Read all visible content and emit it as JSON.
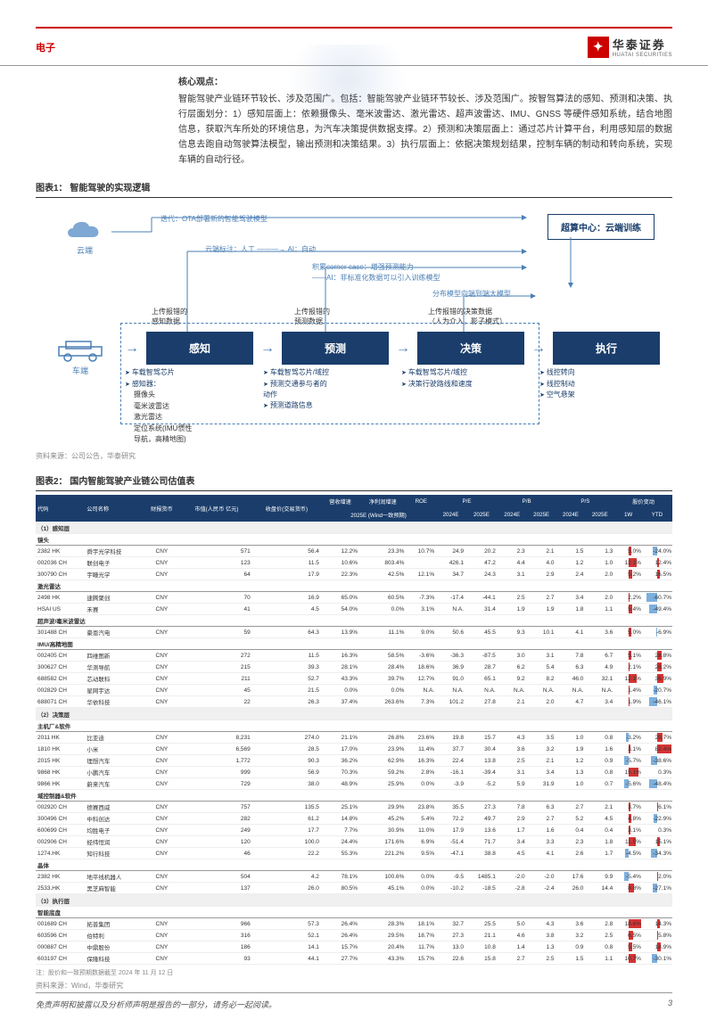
{
  "header": {
    "category": "电子",
    "logo_cn": "华泰证券",
    "logo_en": "HUATAI SECURITIES"
  },
  "core": {
    "title": "核心观点：",
    "body": "智能驾驶产业链环节较长、涉及范围广。包括：智能驾驶产业链环节较长、涉及范围广。按智驾算法的感知、预测和决策、执行层面划分：1）感知层面上：依赖摄像头、毫米波雷达、激光雷达、超声波雷达、IMU、GNSS 等硬件感知系统，结合地图信息，获取汽车所处的环境信息，为汽车决策提供数据支撑。2）预测和决策层面上：通过芯片计算平台，利用感知层的数据信息去跑自动驾驶算法模型，输出预测和决策结果。3）执行层面上：依据决策规划结果，控制车辆的制动和转向系统，实现车辆的自动行径。"
  },
  "chart1": {
    "title": "图表1： 智能驾驶的实现逻辑",
    "cloud": "云端",
    "car": "车端",
    "cloud_center": "超算中心：云端训练",
    "iter": "迭代：OTA部署新的智能驾驶模型",
    "anno_cloud": "云端标注：人工 ———→ AI：自动",
    "anno_corner": "积累corner case：增强预测能力",
    "anno_ai": "——AI：非标准化数据可以引入训练模型",
    "anno_dist": "分布模型向端到端大模型",
    "up1": "上传报错的\n感知数据",
    "up2": "上传报错的\n预测数据",
    "up3": "上传报错的决策数据\n（人为介入，影子模式）",
    "boxes": [
      "感知",
      "预测",
      "决策",
      "执行"
    ],
    "below": [
      {
        "items": [
          "车载智驾芯片",
          "感知器："
        ],
        "sub": [
          "摄像头",
          "毫米波雷达",
          "激光雷达",
          "定位系统(IMU惯性\n导航，高精地图)"
        ]
      },
      {
        "items": [
          "车载智驾芯片/域控",
          "预测交通参与者的\n动作",
          "预测道路信息"
        ]
      },
      {
        "items": [
          "车载智驾芯片/域控",
          "决策行驶路线和速度"
        ]
      },
      {
        "items": [
          "线控转向",
          "线控制动",
          "空气悬架"
        ]
      }
    ],
    "source": "资料来源：公司公告，华泰研究"
  },
  "table": {
    "title": "图表2： 国内智能驾驶产业链公司估值表",
    "note": "注：股价和一致预期数据截至 2024 年 11 月 12 日",
    "source": "资料来源：Wind，华泰研究",
    "headers_top": [
      "代码",
      "公司名称",
      "财报货币",
      "市值(人民币 亿元)",
      "收盘价(交易货币)",
      "营收增速",
      "净利润增速",
      "ROE",
      "P/E",
      "P/E",
      "P/B",
      "P/B",
      "P/S",
      "P/S",
      "股价变动",
      "股价变动"
    ],
    "headers_sub": [
      "",
      "",
      "",
      "",
      "",
      "2025E (Wind一致预期)",
      "",
      "",
      "2024E",
      "2025E",
      "2024E",
      "2025E",
      "2024E",
      "2025E",
      "1W",
      "YTD"
    ],
    "groups": [
      {
        "name": "（1）感知层",
        "subs": [
          {
            "name": "镜头",
            "rows": [
              [
                "2382 HK",
                "舜宇光学科技",
                "CNY",
                "571",
                "56.4",
                "12.2%",
                "23.3%",
                "10.7%",
                "24.9",
                "20.2",
                "2.3",
                "2.1",
                "1.5",
                "1.3",
                "5.0%",
                "-24.0%"
              ],
              [
                "002036 CH",
                "联创电子",
                "CNY",
                "123",
                "11.5",
                "10.6%",
                "803.4%",
                "",
                "426.1",
                "47.2",
                "4.4",
                "4.0",
                "1.2",
                "1.0",
                "12.1%",
                "12.4%"
              ],
              [
                "300790 CH",
                "宇瞳光学",
                "CNY",
                "64",
                "17.9",
                "22.3%",
                "42.5%",
                "12.1%",
                "34.7",
                "24.3",
                "3.1",
                "2.9",
                "2.4",
                "2.0",
                "5.2%",
                "16.5%"
              ]
            ]
          },
          {
            "name": "激光雷达",
            "rows": [
              [
                "2498 HK",
                "速腾聚创",
                "CNY",
                "70",
                "16.9",
                "65.0%",
                "60.5%",
                "-7.3%",
                "-17.4",
                "-44.1",
                "2.5",
                "2.7",
                "3.4",
                "2.0",
                "2.2%",
                "-60.7%"
              ],
              [
                "HSAI US",
                "禾赛",
                "CNY",
                "41",
                "4.5",
                "54.0%",
                "0.0%",
                "3.1%",
                "N.A.",
                "31.4",
                "1.9",
                "1.9",
                "1.8",
                "1.1",
                "5.4%",
                "-49.4%"
              ]
            ]
          },
          {
            "name": "超声波/毫米波雷达",
            "rows": [
              [
                "301488 CH",
                "豪恩汽电",
                "CNY",
                "59",
                "64.3",
                "13.9%",
                "11.1%",
                "9.0%",
                "50.6",
                "45.5",
                "9.3",
                "10.1",
                "4.1",
                "3.6",
                "5.0%",
                "-6.9%"
              ]
            ]
          },
          {
            "name": "IMU/高精地图",
            "rows": [
              [
                "002405 CH",
                "四维图新",
                "CNY",
                "272",
                "11.5",
                "16.3%",
                "58.5%",
                "-3.6%",
                "-36.3",
                "-87.5",
                "3.0",
                "3.1",
                "7.8",
                "6.7",
                "5.1%",
                "28.8%"
              ],
              [
                "300627 CH",
                "华测导航",
                "CNY",
                "215",
                "39.3",
                "28.1%",
                "28.4%",
                "18.6%",
                "36.9",
                "28.7",
                "6.2",
                "5.4",
                "6.3",
                "4.9",
                "2.1%",
                "28.2%"
              ],
              [
                "688582 CH",
                "芯动联科",
                "CNY",
                "211",
                "52.7",
                "43.3%",
                "39.7%",
                "12.7%",
                "91.0",
                "65.1",
                "9.2",
                "8.2",
                "46.0",
                "32.1",
                "12.1%",
                "36.9%"
              ],
              [
                "002829 CH",
                "星网宇达",
                "CNY",
                "45",
                "21.5",
                "0.0%",
                "0.0%",
                "N.A.",
                "N.A.",
                "N.A.",
                "N.A.",
                "N.A.",
                "N.A.",
                "N.A.",
                "1.4%",
                "-20.7%"
              ],
              [
                "688071 CH",
                "华依科技",
                "CNY",
                "22",
                "26.3",
                "37.4%",
                "263.6%",
                "7.3%",
                "101.2",
                "27.8",
                "2.1",
                "2.0",
                "4.7",
                "3.4",
                "1.9%",
                "-46.1%"
              ]
            ]
          }
        ]
      },
      {
        "name": "（2）决策层",
        "subs": [
          {
            "name": "主机厂&软件",
            "rows": [
              [
                "2011 HK",
                "比亚迪",
                "CNY",
                "8,231",
                "274.0",
                "21.1%",
                "26.8%",
                "23.6%",
                "19.8",
                "15.7",
                "4.3",
                "3.5",
                "1.0",
                "0.8",
                "-3.2%",
                "29.7%"
              ],
              [
                "1810 HK",
                "小米",
                "CNY",
                "6,569",
                "28.5",
                "17.0%",
                "23.9%",
                "11.4%",
                "37.7",
                "30.4",
                "3.6",
                "3.2",
                "1.9",
                "1.6",
                "3.1%",
                "82.4%"
              ],
              [
                "2015 HK",
                "理想汽车",
                "CNY",
                "1,772",
                "90.3",
                "36.2%",
                "62.9%",
                "16.3%",
                "22.4",
                "13.8",
                "2.5",
                "2.1",
                "1.2",
                "0.9",
                "-5.7%",
                "-38.6%"
              ],
              [
                "9868 HK",
                "小鹏汽车",
                "CNY",
                "999",
                "56.9",
                "70.3%",
                "59.2%",
                "2.8%",
                "-16.1",
                "-39.4",
                "3.1",
                "3.4",
                "1.3",
                "0.8",
                "15.1%",
                "0.3%"
              ],
              [
                "9866 HK",
                "蔚来汽车",
                "CNY",
                "729",
                "38.0",
                "48.9%",
                "25.9%",
                "0.0%",
                "-3.9",
                "-5.2",
                "5.9",
                "31.9",
                "1.0",
                "0.7",
                "-5.6%",
                "-48.4%"
              ]
            ]
          },
          {
            "name": "域控制器&软件",
            "rows": [
              [
                "002920 CH",
                "德赛西威",
                "CNY",
                "757",
                "135.5",
                "25.1%",
                "29.9%",
                "23.8%",
                "35.5",
                "27.3",
                "7.8",
                "6.3",
                "2.7",
                "2.1",
                "3.7%",
                "6.1%"
              ],
              [
                "300496 CH",
                "中科创达",
                "CNY",
                "282",
                "61.2",
                "14.8%",
                "45.2%",
                "5.4%",
                "72.2",
                "49.7",
                "2.9",
                "2.7",
                "5.2",
                "4.5",
                "4.8%",
                "-22.9%"
              ],
              [
                "600699 CH",
                "均胜电子",
                "CNY",
                "249",
                "17.7",
                "7.7%",
                "30.9%",
                "11.0%",
                "17.9",
                "13.6",
                "1.7",
                "1.6",
                "0.4",
                "0.4",
                "3.1%",
                "0.3%"
              ],
              [
                "002906 CH",
                "经纬恒润",
                "CNY",
                "120",
                "100.0",
                "24.4%",
                "171.6%",
                "6.9%",
                "-51.4",
                "71.7",
                "3.4",
                "3.3",
                "2.3",
                "1.8",
                "11.5%",
                "15.1%"
              ],
              [
                "1274.HK",
                "知行科技",
                "CNY",
                "46",
                "22.2",
                "55.3%",
                "221.2%",
                "9.5%",
                "-47.1",
                "38.8",
                "4.5",
                "4.1",
                "2.6",
                "1.7",
                "-4.5%",
                "-34.3%"
              ]
            ]
          },
          {
            "name": "晶体",
            "rows": [
              [
                "2382 HK",
                "地平线机器人",
                "CNY",
                "504",
                "4.2",
                "78.1%",
                "100.6%",
                "0.0%",
                "-9.5",
                "1485.1",
                "-2.0",
                "-2.0",
                "17.6",
                "9.9",
                "-5.4%",
                "2.0%"
              ],
              [
                "2533.HK",
                "黑芝麻智能",
                "CNY",
                "137",
                "26.0",
                "80.5%",
                "45.1%",
                "0.0%",
                "-10.2",
                "-18.5",
                "-2.8",
                "-2.4",
                "26.0",
                "14.4",
                "8.8%",
                "-27.1%"
              ]
            ]
          }
        ]
      },
      {
        "name": "（3）执行层",
        "subs": [
          {
            "name": "智能底盘",
            "rows": [
              [
                "001689 CH",
                "拓普集团",
                "CNY",
                "966",
                "57.3",
                "26.4%",
                "28.3%",
                "18.1%",
                "32.7",
                "25.5",
                "5.0",
                "4.3",
                "3.6",
                "2.8",
                "18.6%",
                "14.3%"
              ],
              [
                "603596 CH",
                "伯特利",
                "CNY",
                "316",
                "52.1",
                "26.4%",
                "29.5%",
                "18.7%",
                "27.3",
                "21.1",
                "4.6",
                "3.8",
                "3.2",
                "2.5",
                "6.5%",
                "5.8%"
              ],
              [
                "000887 CH",
                "中鼎股份",
                "CNY",
                "186",
                "14.1",
                "15.7%",
                "20.4%",
                "11.7%",
                "13.0",
                "10.8",
                "1.4",
                "1.3",
                "0.9",
                "0.8",
                "5.5%",
                "18.9%"
              ],
              [
                "603197 CH",
                "保隆科技",
                "CNY",
                "93",
                "44.1",
                "27.7%",
                "43.3%",
                "15.7%",
                "22.6",
                "15.8",
                "2.7",
                "2.5",
                "1.5",
                "1.1",
                "10.7%",
                "-30.1%"
              ]
            ]
          }
        ]
      }
    ]
  },
  "footer": {
    "disclaimer": "免责声明和披露以及分析师声明是报告的一部分，请务必一起阅读。",
    "page": "3"
  }
}
